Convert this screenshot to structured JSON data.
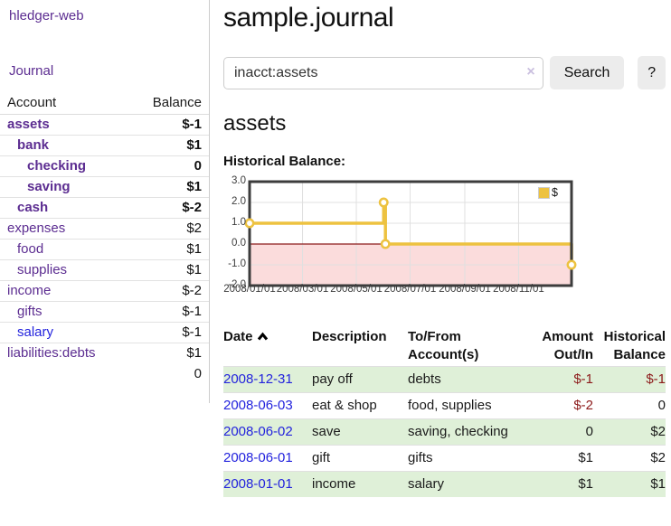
{
  "sidebar": {
    "brand": "hledger-web",
    "journal_label": "Journal",
    "accounts_table": {
      "headers": [
        "Account",
        "Balance"
      ],
      "rows": [
        {
          "name": "assets",
          "depth": 1,
          "matched": true,
          "balance": "$-1",
          "balance_class": "neg"
        },
        {
          "name": "bank",
          "depth": 2,
          "matched": true,
          "balance": "$1",
          "balance_class": ""
        },
        {
          "name": "checking",
          "depth": 3,
          "matched": true,
          "balance": "0",
          "balance_class": ""
        },
        {
          "name": "saving",
          "depth": 3,
          "matched": true,
          "balance": "$1",
          "balance_class": ""
        },
        {
          "name": "cash",
          "depth": 2,
          "matched": true,
          "balance": "$-2",
          "balance_class": "neg"
        },
        {
          "name": "expenses",
          "depth": 1,
          "matched": false,
          "balance": "$2",
          "balance_class": ""
        },
        {
          "name": "food",
          "depth": 2,
          "matched": false,
          "balance": "$1",
          "balance_class": ""
        },
        {
          "name": "supplies",
          "depth": 2,
          "matched": false,
          "balance": "$1",
          "balance_class": ""
        },
        {
          "name": "income",
          "depth": 1,
          "matched": false,
          "balance": "$-2",
          "balance_class": "neg-faded"
        },
        {
          "name": "gifts",
          "depth": 2,
          "matched": false,
          "balance": "$-1",
          "balance_class": "neg-faded"
        },
        {
          "name": "salary",
          "depth": 2,
          "matched": false,
          "link_blue": true,
          "balance": "$-1",
          "balance_class": "neg-faded"
        },
        {
          "name": "liabilities:debts",
          "depth": 1,
          "matched": false,
          "balance": "$1",
          "balance_class": ""
        }
      ],
      "total": "0"
    }
  },
  "header": {
    "title": "sample.journal"
  },
  "search": {
    "query": "inacct:assets",
    "clear_icon": "×",
    "search_label": "Search",
    "help_label": "?"
  },
  "account_page": {
    "heading": "assets",
    "chart_label": "Historical Balance:"
  },
  "chart_data": {
    "type": "line",
    "title": "Historical Balance:",
    "x_domain_days": [
      0,
      365
    ],
    "ylim": [
      -2,
      3
    ],
    "grid": true,
    "legend": {
      "label": "$",
      "position": "top-right"
    },
    "series": [
      {
        "name": "$",
        "color": "#edc240",
        "steps": true,
        "points_day_value": [
          [
            0,
            1
          ],
          [
            152,
            2
          ],
          [
            153,
            2
          ],
          [
            154,
            0
          ],
          [
            365,
            -1
          ]
        ],
        "markers_day_value": [
          [
            0,
            1
          ],
          [
            152,
            2
          ],
          [
            154,
            0
          ],
          [
            365,
            -1
          ]
        ],
        "point_dates": [
          "2008-01-01",
          "2008-06-01",
          "2008-06-02",
          "2008-06-03",
          "2008-12-31"
        ]
      }
    ],
    "xticks": [
      {
        "day": 0,
        "label": "2008/01/01"
      },
      {
        "day": 60,
        "label": "2008/03/01"
      },
      {
        "day": 121,
        "label": "2008/05/01"
      },
      {
        "day": 182,
        "label": "2008/07/01"
      },
      {
        "day": 244,
        "label": "2008/09/01"
      },
      {
        "day": 305,
        "label": "2008/11/01"
      }
    ],
    "yticks": [
      {
        "value": 3,
        "label": "3.0"
      },
      {
        "value": 2,
        "label": "2.0"
      },
      {
        "value": 1,
        "label": "1.0"
      },
      {
        "value": 0,
        "label": "0.0"
      },
      {
        "value": -1,
        "label": "-1.0"
      },
      {
        "value": -2,
        "label": "-2.0"
      }
    ],
    "colors": {
      "line": "#edc240",
      "marker_fill": "#ffffff",
      "negative_region": "#fbdcdc",
      "zero_line": "#8b1a1a",
      "gridline": "#e0e0e0",
      "border": "#3c3c3c"
    }
  },
  "register_table": {
    "headers": [
      {
        "line1": "Date",
        "line2": "",
        "align": "left",
        "sort_icon": "chevron-up"
      },
      {
        "line1": "Description",
        "line2": "",
        "align": "left"
      },
      {
        "line1": "To/From",
        "line2": "Account(s)",
        "align": "left"
      },
      {
        "line1": "Amount",
        "line2": "Out/In",
        "align": "right"
      },
      {
        "line1": "Historical",
        "line2": "Balance",
        "align": "right"
      }
    ],
    "rows": [
      {
        "date": "2008-12-31",
        "description": "pay off",
        "accounts": "debts",
        "amount": "$-1",
        "amount_neg": true,
        "balance": "$-1",
        "balance_neg": true,
        "striped": true
      },
      {
        "date": "2008-06-03",
        "description": "eat & shop",
        "accounts": "food, supplies",
        "amount": "$-2",
        "amount_neg": true,
        "balance": "0",
        "balance_neg": false,
        "striped": false
      },
      {
        "date": "2008-06-02",
        "description": "save",
        "accounts": "saving, checking",
        "amount": "0",
        "amount_neg": false,
        "balance": "$2",
        "balance_neg": false,
        "striped": true
      },
      {
        "date": "2008-06-01",
        "description": "gift",
        "accounts": "gifts",
        "amount": "$1",
        "amount_neg": false,
        "balance": "$2",
        "balance_neg": false,
        "striped": false
      },
      {
        "date": "2008-01-01",
        "description": "income",
        "accounts": "salary",
        "amount": "$1",
        "amount_neg": false,
        "balance": "$1",
        "balance_neg": false,
        "striped": true
      }
    ]
  }
}
